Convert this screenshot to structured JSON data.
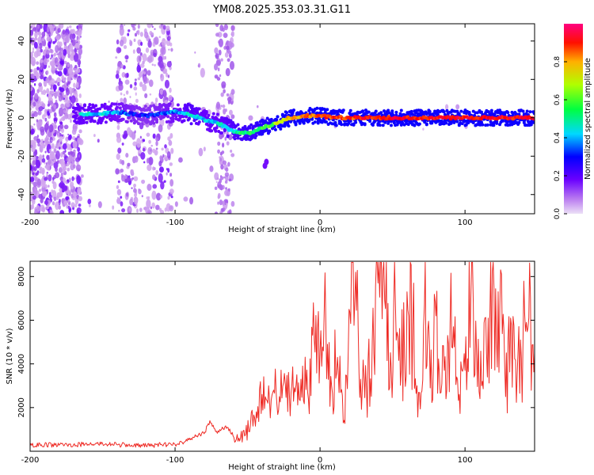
{
  "title": "YM08.2025.353.03.31.G11",
  "chart_data": [
    {
      "type": "heatmap",
      "title": "YM08.2025.353.03.31.G11",
      "xlabel": "Height of straight line (km)",
      "ylabel": "Frequency (Hz)",
      "xlim": [
        -200,
        148
      ],
      "ylim": [
        -50,
        49
      ],
      "xticks": [
        -200,
        -100,
        0,
        100
      ],
      "yticks": [
        -40,
        -20,
        0,
        20,
        40
      ],
      "colorbar": {
        "label": "Normalized spectral amplitude",
        "range": [
          0,
          1
        ],
        "ticks": [
          0.0,
          0.2,
          0.4,
          0.6,
          0.8
        ],
        "colormap": [
          "#e6c8f0",
          "#9b4dea",
          "#6a00ff",
          "#0000ff",
          "#00e0ff",
          "#00ff60",
          "#c8ff00",
          "#ffa000",
          "#ff0000",
          "#ff0080"
        ]
      },
      "ridge": {
        "x": [
          -165,
          -150,
          -140,
          -130,
          -120,
          -110,
          -100,
          -90,
          -80,
          -70,
          -60,
          -50,
          -45,
          -40,
          -35,
          -30,
          -25,
          -20,
          -15,
          -10,
          -5,
          0,
          10,
          20,
          40,
          60,
          80,
          100,
          120,
          148
        ],
        "y": [
          2,
          2,
          3,
          2,
          1,
          2,
          3,
          2,
          -1,
          -3,
          -7,
          -8,
          -7,
          -5,
          -4,
          -3,
          -1,
          0,
          0,
          1,
          1,
          1,
          0,
          0,
          0,
          0,
          0,
          0,
          0,
          0
        ],
        "amplitude": [
          0.45,
          0.45,
          0.4,
          0.35,
          0.3,
          0.35,
          0.4,
          0.5,
          0.45,
          0.45,
          0.5,
          0.55,
          0.55,
          0.6,
          0.6,
          0.65,
          0.7,
          0.75,
          0.75,
          0.8,
          0.8,
          0.85,
          0.85,
          0.85,
          0.9,
          0.9,
          0.9,
          0.9,
          0.9,
          0.9
        ]
      },
      "outlier_points": [
        {
          "x": -37,
          "y": -23,
          "amplitude": 0.2
        },
        {
          "x": -38,
          "y": -25,
          "amplitude": 0.2
        }
      ]
    },
    {
      "type": "line",
      "xlabel": "Height of straight line (km)",
      "ylabel": "SNR (10 * v/v)",
      "xlim": [
        -200,
        148
      ],
      "ylim": [
        0,
        8700
      ],
      "xticks": [
        -200,
        -100,
        0,
        100
      ],
      "yticks": [
        2000,
        4000,
        6000,
        8000
      ],
      "series": [
        {
          "name": "SNR",
          "color": "#ee2a24",
          "x": [
            -200,
            -190,
            -180,
            -170,
            -160,
            -150,
            -140,
            -130,
            -120,
            -110,
            -100,
            -95,
            -90,
            -85,
            -80,
            -76,
            -72,
            -68,
            -64,
            -60,
            -56,
            -52,
            -48,
            -44,
            -40,
            -36,
            -32,
            -28,
            -24,
            -20,
            -16,
            -12,
            -8,
            -4,
            0,
            4,
            8,
            12,
            16,
            20,
            24,
            28,
            32,
            36,
            40,
            44,
            48,
            52,
            56,
            60,
            64,
            68,
            72,
            76,
            80,
            84,
            88,
            92,
            96,
            100,
            104,
            108,
            112,
            116,
            120,
            124,
            128,
            132,
            136,
            140,
            144,
            148
          ],
          "values": [
            250,
            300,
            280,
            300,
            320,
            350,
            300,
            280,
            250,
            300,
            320,
            400,
            600,
            700,
            800,
            1400,
            900,
            1000,
            1100,
            700,
            600,
            700,
            1200,
            1800,
            2600,
            2200,
            2800,
            2500,
            3100,
            2700,
            3500,
            3900,
            2400,
            5100,
            4600,
            5900,
            3000,
            4300,
            1300,
            6500,
            6900,
            3300,
            2900,
            5000,
            7700,
            8650,
            2900,
            6700,
            3700,
            7300,
            5800,
            2700,
            6700,
            2900,
            6200,
            3100,
            5300,
            5700,
            2600,
            3700,
            7000,
            4400,
            3200,
            6100,
            7500,
            6600,
            2500,
            5800,
            3500,
            5100,
            6100,
            4500
          ]
        }
      ]
    }
  ]
}
